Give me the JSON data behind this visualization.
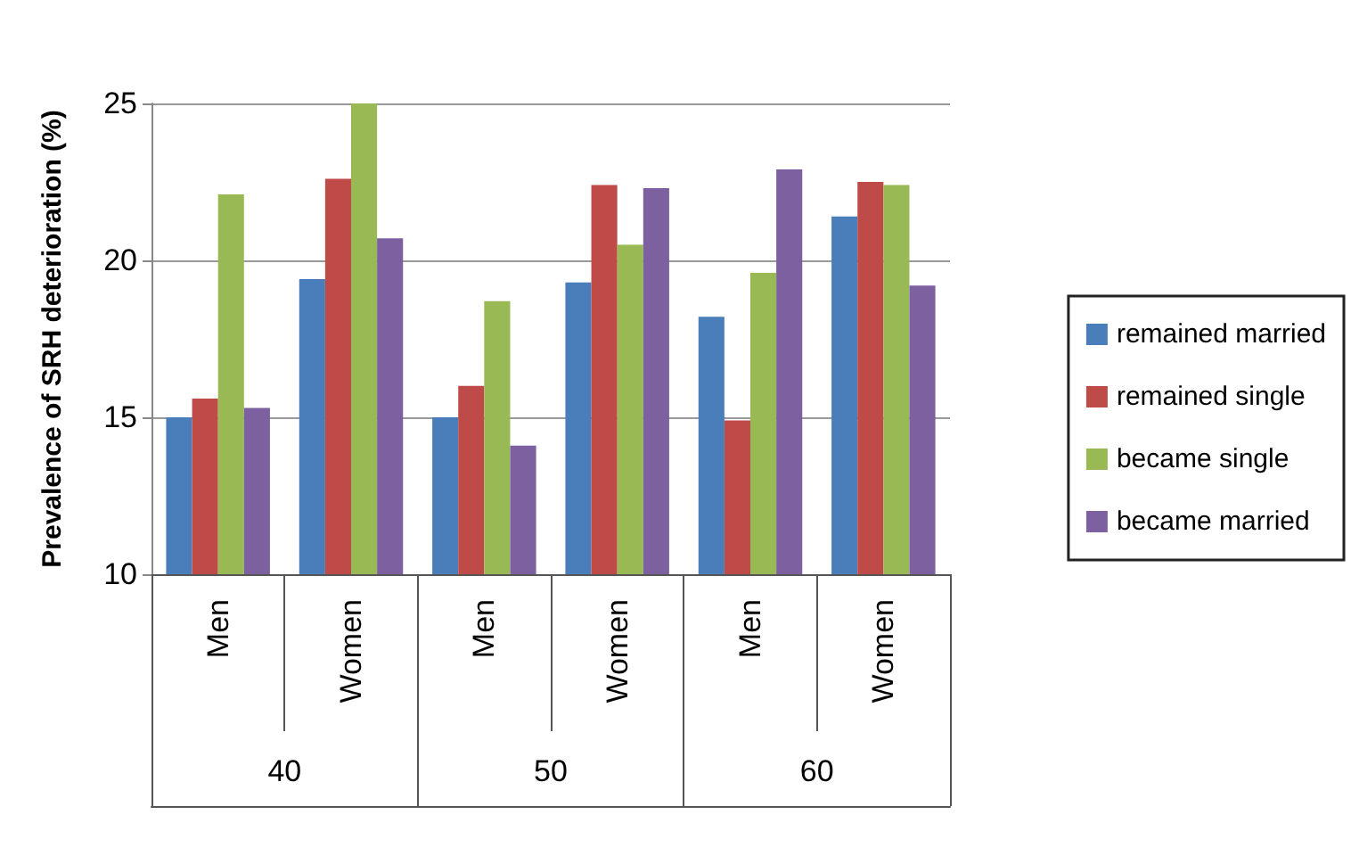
{
  "chart_data": {
    "type": "bar",
    "ylabel": "Prevalence of SRH deterioration (%)",
    "categories": [
      "Men",
      "Women",
      "Men",
      "Women",
      "Men",
      "Women"
    ],
    "annotations": [
      "40",
      "50",
      "60"
    ],
    "series": [
      {
        "name": "remained married",
        "color": "#4a7ebb",
        "values": [
          15.0,
          19.4,
          15.0,
          19.3,
          18.2,
          21.4
        ]
      },
      {
        "name": "remained single",
        "color": "#be4b48",
        "values": [
          15.6,
          22.6,
          16.0,
          22.4,
          14.9,
          22.5
        ]
      },
      {
        "name": "became single",
        "color": "#98b954",
        "values": [
          22.1,
          25.0,
          18.7,
          20.5,
          19.6,
          22.4
        ]
      },
      {
        "name": "became married",
        "color": "#7d60a0",
        "values": [
          15.3,
          20.7,
          14.1,
          22.3,
          22.9,
          19.2
        ]
      }
    ],
    "ylim": [
      10,
      25
    ],
    "yticks": [
      10,
      15,
      20,
      25
    ],
    "grid": "y",
    "legend": "right"
  }
}
